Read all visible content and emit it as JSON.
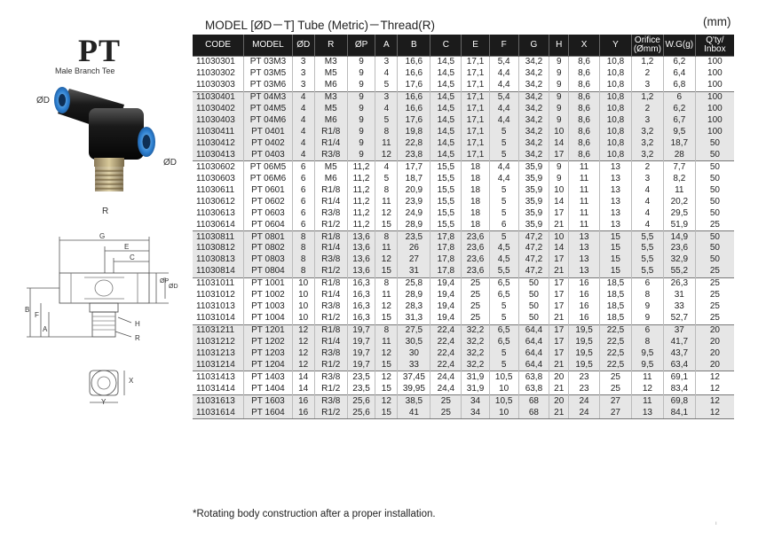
{
  "header": {
    "title": "MODEL [ØD－T]  Tube (Metric)－Thread(R)",
    "unit": "(mm)"
  },
  "product": {
    "code": "PT",
    "name": "Male Branch Tee"
  },
  "labels": {
    "od_left": "ØD",
    "od_right": "ØD",
    "r": "R"
  },
  "dims": {
    "g": "G",
    "e": "E",
    "c": "C",
    "b": "B",
    "f": "F",
    "a": "A",
    "op": "ØP",
    "od": "ØD",
    "h": "H",
    "rr": "R",
    "x": "X",
    "y": "Y"
  },
  "table": {
    "columns": [
      "CODE",
      "MODEL",
      "ØD",
      "R",
      "ØP",
      "A",
      "B",
      "C",
      "E",
      "F",
      "G",
      "H",
      "X",
      "Y",
      "Orifice (Ømm)",
      "W.G(g)",
      "Q'ty/ Inbox"
    ],
    "groups": [
      {
        "shade": "light",
        "rows": [
          [
            "11030301",
            "PT 03M3",
            "3",
            "M3",
            "9",
            "3",
            "16,6",
            "14,5",
            "17,1",
            "5,4",
            "34,2",
            "9",
            "8,6",
            "10,8",
            "1,2",
            "6,2",
            "100"
          ],
          [
            "11030302",
            "PT 03M5",
            "3",
            "M5",
            "9",
            "4",
            "16,6",
            "14,5",
            "17,1",
            "4,4",
            "34,2",
            "9",
            "8,6",
            "10,8",
            "2",
            "6,4",
            "100"
          ],
          [
            "11030303",
            "PT 03M6",
            "3",
            "M6",
            "9",
            "5",
            "17,6",
            "14,5",
            "17,1",
            "4,4",
            "34,2",
            "9",
            "8,6",
            "10,8",
            "3",
            "6,8",
            "100"
          ]
        ]
      },
      {
        "shade": "dark",
        "rows": [
          [
            "11030401",
            "PT 04M3",
            "4",
            "M3",
            "9",
            "3",
            "16,6",
            "14,5",
            "17,1",
            "5,4",
            "34,2",
            "9",
            "8,6",
            "10,8",
            "1,2",
            "6",
            "100"
          ],
          [
            "11030402",
            "PT 04M5",
            "4",
            "M5",
            "9",
            "4",
            "16,6",
            "14,5",
            "17,1",
            "4,4",
            "34,2",
            "9",
            "8,6",
            "10,8",
            "2",
            "6,2",
            "100"
          ],
          [
            "11030403",
            "PT 04M6",
            "4",
            "M6",
            "9",
            "5",
            "17,6",
            "14,5",
            "17,1",
            "4,4",
            "34,2",
            "9",
            "8,6",
            "10,8",
            "3",
            "6,7",
            "100"
          ],
          [
            "11030411",
            "PT 0401",
            "4",
            "R1/8",
            "9",
            "8",
            "19,8",
            "14,5",
            "17,1",
            "5",
            "34,2",
            "10",
            "8,6",
            "10,8",
            "3,2",
            "9,5",
            "100"
          ],
          [
            "11030412",
            "PT 0402",
            "4",
            "R1/4",
            "9",
            "11",
            "22,8",
            "14,5",
            "17,1",
            "5",
            "34,2",
            "14",
            "8,6",
            "10,8",
            "3,2",
            "18,7",
            "50"
          ],
          [
            "11030413",
            "PT 0403",
            "4",
            "R3/8",
            "9",
            "12",
            "23,8",
            "14,5",
            "17,1",
            "5",
            "34,2",
            "17",
            "8,6",
            "10,8",
            "3,2",
            "28",
            "50"
          ]
        ]
      },
      {
        "shade": "light",
        "rows": [
          [
            "11030602",
            "PT 06M5",
            "6",
            "M5",
            "11,2",
            "4",
            "17,7",
            "15,5",
            "18",
            "4,4",
            "35,9",
            "9",
            "11",
            "13",
            "2",
            "7,7",
            "50"
          ],
          [
            "11030603",
            "PT 06M6",
            "6",
            "M6",
            "11,2",
            "5",
            "18,7",
            "15,5",
            "18",
            "4,4",
            "35,9",
            "9",
            "11",
            "13",
            "3",
            "8,2",
            "50"
          ],
          [
            "11030611",
            "PT 0601",
            "6",
            "R1/8",
            "11,2",
            "8",
            "20,9",
            "15,5",
            "18",
            "5",
            "35,9",
            "10",
            "11",
            "13",
            "4",
            "11",
            "50"
          ],
          [
            "11030612",
            "PT 0602",
            "6",
            "R1/4",
            "11,2",
            "11",
            "23,9",
            "15,5",
            "18",
            "5",
            "35,9",
            "14",
            "11",
            "13",
            "4",
            "20,2",
            "50"
          ],
          [
            "11030613",
            "PT 0603",
            "6",
            "R3/8",
            "11,2",
            "12",
            "24,9",
            "15,5",
            "18",
            "5",
            "35,9",
            "17",
            "11",
            "13",
            "4",
            "29,5",
            "50"
          ],
          [
            "11030614",
            "PT 0604",
            "6",
            "R1/2",
            "11,2",
            "15",
            "28,9",
            "15,5",
            "18",
            "6",
            "35,9",
            "21",
            "11",
            "13",
            "4",
            "51,9",
            "25"
          ]
        ]
      },
      {
        "shade": "dark",
        "rows": [
          [
            "11030811",
            "PT 0801",
            "8",
            "R1/8",
            "13,6",
            "8",
            "23,5",
            "17,8",
            "23,6",
            "5",
            "47,2",
            "10",
            "13",
            "15",
            "5,5",
            "14,9",
            "50"
          ],
          [
            "11030812",
            "PT 0802",
            "8",
            "R1/4",
            "13,6",
            "11",
            "26",
            "17,8",
            "23,6",
            "4,5",
            "47,2",
            "14",
            "13",
            "15",
            "5,5",
            "23,6",
            "50"
          ],
          [
            "11030813",
            "PT 0803",
            "8",
            "R3/8",
            "13,6",
            "12",
            "27",
            "17,8",
            "23,6",
            "4,5",
            "47,2",
            "17",
            "13",
            "15",
            "5,5",
            "32,9",
            "50"
          ],
          [
            "11030814",
            "PT 0804",
            "8",
            "R1/2",
            "13,6",
            "15",
            "31",
            "17,8",
            "23,6",
            "5,5",
            "47,2",
            "21",
            "13",
            "15",
            "5,5",
            "55,2",
            "25"
          ]
        ]
      },
      {
        "shade": "light",
        "rows": [
          [
            "11031011",
            "PT 1001",
            "10",
            "R1/8",
            "16,3",
            "8",
            "25,8",
            "19,4",
            "25",
            "6,5",
            "50",
            "17",
            "16",
            "18,5",
            "6",
            "26,3",
            "25"
          ],
          [
            "11031012",
            "PT 1002",
            "10",
            "R1/4",
            "16,3",
            "11",
            "28,9",
            "19,4",
            "25",
            "6,5",
            "50",
            "17",
            "16",
            "18,5",
            "8",
            "31",
            "25"
          ],
          [
            "11031013",
            "PT 1003",
            "10",
            "R3/8",
            "16,3",
            "12",
            "28,3",
            "19,4",
            "25",
            "5",
            "50",
            "17",
            "16",
            "18,5",
            "9",
            "33",
            "25"
          ],
          [
            "11031014",
            "PT 1004",
            "10",
            "R1/2",
            "16,3",
            "15",
            "31,3",
            "19,4",
            "25",
            "5",
            "50",
            "21",
            "16",
            "18,5",
            "9",
            "52,7",
            "25"
          ]
        ]
      },
      {
        "shade": "dark",
        "rows": [
          [
            "11031211",
            "PT 1201",
            "12",
            "R1/8",
            "19,7",
            "8",
            "27,5",
            "22,4",
            "32,2",
            "6,5",
            "64,4",
            "17",
            "19,5",
            "22,5",
            "6",
            "37",
            "20"
          ],
          [
            "11031212",
            "PT 1202",
            "12",
            "R1/4",
            "19,7",
            "11",
            "30,5",
            "22,4",
            "32,2",
            "6,5",
            "64,4",
            "17",
            "19,5",
            "22,5",
            "8",
            "41,7",
            "20"
          ],
          [
            "11031213",
            "PT 1203",
            "12",
            "R3/8",
            "19,7",
            "12",
            "30",
            "22,4",
            "32,2",
            "5",
            "64,4",
            "17",
            "19,5",
            "22,5",
            "9,5",
            "43,7",
            "20"
          ],
          [
            "11031214",
            "PT 1204",
            "12",
            "R1/2",
            "19,7",
            "15",
            "33",
            "22,4",
            "32,2",
            "5",
            "64,4",
            "21",
            "19,5",
            "22,5",
            "9,5",
            "63,4",
            "20"
          ]
        ]
      },
      {
        "shade": "light",
        "rows": [
          [
            "11031413",
            "PT 1403",
            "14",
            "R3/8",
            "23,5",
            "12",
            "37,45",
            "24,4",
            "31,9",
            "10,5",
            "63,8",
            "20",
            "23",
            "25",
            "11",
            "69,1",
            "12"
          ],
          [
            "11031414",
            "PT 1404",
            "14",
            "R1/2",
            "23,5",
            "15",
            "39,95",
            "24,4",
            "31,9",
            "10",
            "63,8",
            "21",
            "23",
            "25",
            "12",
            "83,4",
            "12"
          ]
        ]
      },
      {
        "shade": "dark",
        "rows": [
          [
            "11031613",
            "PT 1603",
            "16",
            "R3/8",
            "25,6",
            "12",
            "38,5",
            "25",
            "34",
            "10,5",
            "68",
            "20",
            "24",
            "27",
            "11",
            "69,8",
            "12"
          ],
          [
            "11031614",
            "PT 1604",
            "16",
            "R1/2",
            "25,6",
            "15",
            "41",
            "25",
            "34",
            "10",
            "68",
            "21",
            "24",
            "27",
            "13",
            "84,1",
            "12"
          ]
        ]
      }
    ]
  },
  "footnote": "*Rotating body construction after a proper installation.",
  "page_mark": "ı"
}
